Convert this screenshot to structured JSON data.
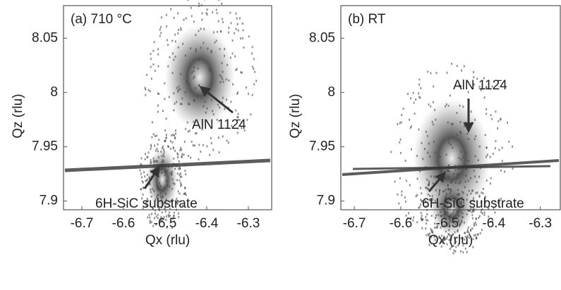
{
  "chart_data": [
    {
      "type": "map",
      "title": "(a) 710 °C",
      "x_label": "Qx (rlu)",
      "y_label": "Qz (rlu)",
      "xlim": [
        -6.744,
        -6.244
      ],
      "ylim": [
        7.892,
        8.08
      ],
      "xticks": [
        -6.7,
        -6.6,
        -6.5,
        -6.4,
        -6.3
      ],
      "yticks": [
        7.9,
        7.95,
        8,
        8.05
      ],
      "annotations": [
        "AlN 112̄4",
        "6H-SiC substrate"
      ]
    },
    {
      "type": "map",
      "title": "(b) RT",
      "x_label": "Qx (rlu)",
      "y_label": "Qz (rlu)",
      "xlim": [
        -6.729,
        -6.257
      ],
      "ylim": [
        7.892,
        8.08
      ],
      "xticks": [
        -6.7,
        -6.6,
        -6.5,
        -6.4,
        -6.3
      ],
      "yticks": [
        7.9,
        7.95,
        8,
        8.05
      ],
      "annotations": [
        "AlN 112̄4",
        "6H-SiC substrate"
      ]
    }
  ]
}
